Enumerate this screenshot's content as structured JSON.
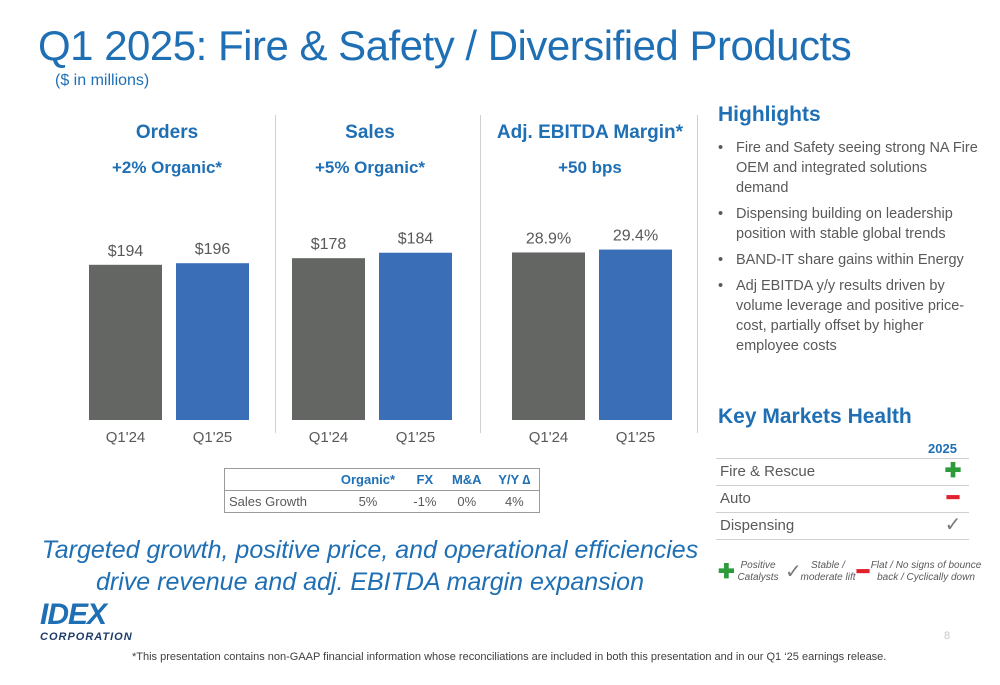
{
  "title": "Q1 2025: Fire & Safety / Diversified Products",
  "subtitle": "($ in millions)",
  "chart_data": [
    {
      "type": "bar",
      "title": "Orders",
      "subtitle": "+2% Organic*",
      "categories": [
        "Q1'24",
        "Q1'25"
      ],
      "values": [
        194,
        196
      ],
      "value_labels": [
        "$194",
        "$196"
      ],
      "colors": [
        "#646664",
        "#3a6fb8"
      ],
      "ylim": [
        0,
        250
      ]
    },
    {
      "type": "bar",
      "title": "Sales",
      "subtitle": "+5% Organic*",
      "categories": [
        "Q1'24",
        "Q1'25"
      ],
      "values": [
        178,
        184
      ],
      "value_labels": [
        "$178",
        "$184"
      ],
      "colors": [
        "#646664",
        "#3a6fb8"
      ],
      "ylim": [
        0,
        220
      ]
    },
    {
      "type": "bar",
      "title": "Adj. EBITDA Margin*",
      "subtitle": "+50 bps",
      "categories": [
        "Q1'24",
        "Q1'25"
      ],
      "values": [
        28.9,
        29.4
      ],
      "value_labels": [
        "28.9%",
        "29.4%"
      ],
      "colors": [
        "#646664",
        "#3a6fb8"
      ],
      "ylim": [
        0,
        34.5
      ]
    }
  ],
  "sales_growth_table": {
    "headers": [
      "",
      "Organic*",
      "FX",
      "M&A",
      "Y/Y ∆"
    ],
    "row_label": "Sales Growth",
    "values": [
      "5%",
      "-1%",
      "0%",
      "4%"
    ]
  },
  "highlights": {
    "title": "Highlights",
    "bullet": "•",
    "items": [
      "Fire and Safety seeing strong NA Fire OEM and integrated solutions demand",
      "Dispensing building on leadership position with stable global trends",
      "BAND-IT share gains within Energy",
      "Adj EBITDA y/y results driven by volume leverage and positive price-cost, partially offset by higher employee costs"
    ]
  },
  "key_markets": {
    "title": "Key Markets Health",
    "year": "2025",
    "rows": [
      {
        "label": "Fire & Rescue",
        "status": "plus-icon"
      },
      {
        "label": "Auto",
        "status": "minus-icon"
      },
      {
        "label": "Dispensing",
        "status": "check-icon"
      }
    ],
    "legend": {
      "positive": "Positive\nCatalysts",
      "stable": "Stable /\nmoderate lift",
      "flat": "Flat / No signs of bounce\nback / Cyclically down"
    },
    "status_colors": {
      "plus": "#2e9b3a",
      "minus": "#e0212e",
      "check": "#7a7a7a"
    }
  },
  "tagline": "Targeted growth, positive price, and operational efficiencies drive revenue and adj. EBITDA margin expansion",
  "logo": {
    "brand": "IDEX",
    "corp": "CORPORATION"
  },
  "page_number": "8",
  "footnote": "*This presentation contains non-GAAP financial information whose reconciliations are included in both this presentation and in our Q1 ‘25 earnings release."
}
